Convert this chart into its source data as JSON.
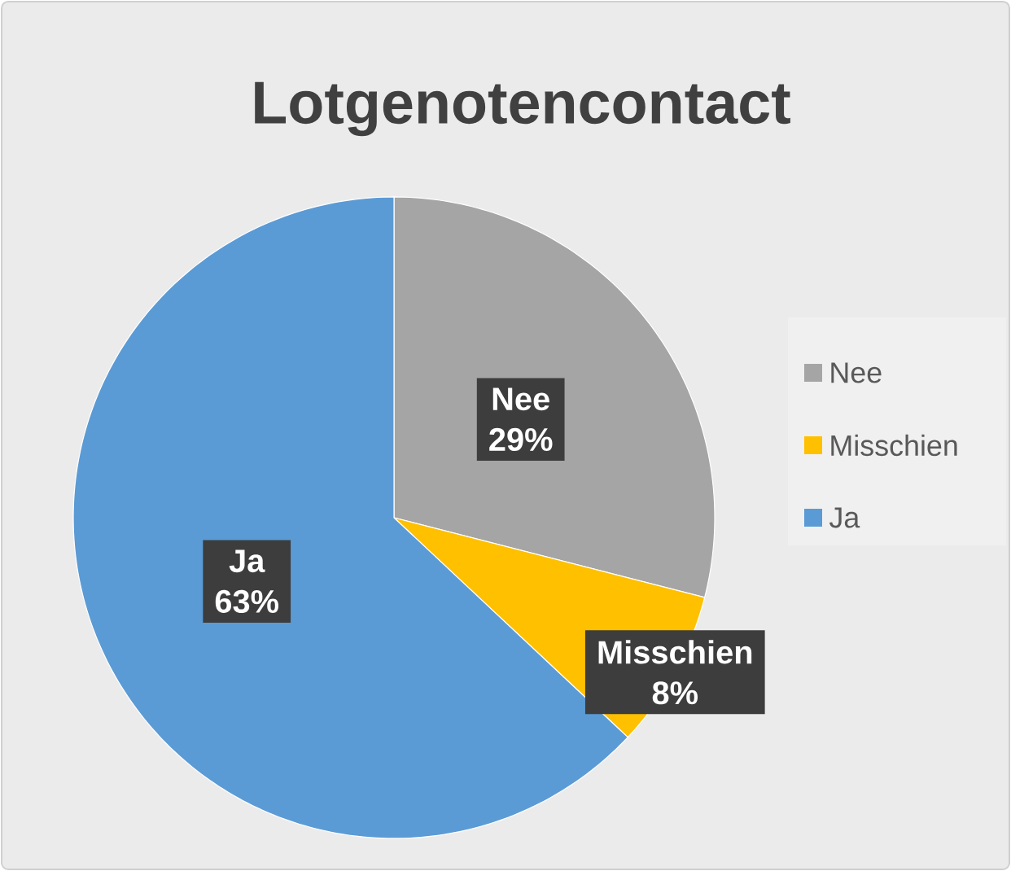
{
  "chart_data": {
    "type": "pie",
    "title": "Lotgenotencontact",
    "categories": [
      "Nee",
      "Misschien",
      "Ja"
    ],
    "values": [
      29,
      8,
      63
    ],
    "value_labels": [
      "29%",
      "8%",
      "63%"
    ],
    "colors": [
      "#a5a5a5",
      "#ffc000",
      "#5b9bd5"
    ],
    "data_labels": true,
    "legend": "right"
  }
}
